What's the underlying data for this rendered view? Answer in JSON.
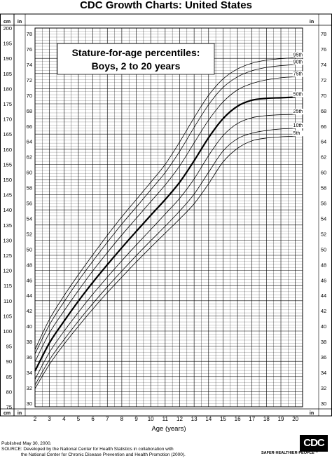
{
  "page": {
    "title": "CDC Growth Charts: United States",
    "published": "Published May 30, 2000.",
    "source_line1": "SOURCE: Developed by the National Center for Health Statistics in collaboration with",
    "source_line2": "the National Center for Chronic Disease Prevention and Health Promotion (2000).",
    "logo_text": "CDC",
    "tagline": "SAFER·HEALTHIER·PEOPLE™"
  },
  "chart_data": {
    "type": "line",
    "title": "Stature-for-age percentiles:",
    "subtitle": "Boys, 2 to 20 years",
    "xlabel": "Age (years)",
    "x_ticks": [
      2,
      3,
      4,
      5,
      6,
      7,
      8,
      9,
      10,
      11,
      12,
      13,
      14,
      15,
      16,
      17,
      18,
      19,
      20
    ],
    "xlim": [
      2,
      20.5
    ],
    "ylim_cm": [
      75,
      200
    ],
    "ylim_in": [
      29.5,
      78.74
    ],
    "cm_unit_label": "cm",
    "in_unit_label": "in",
    "cm_ticks": [
      75,
      80,
      85,
      90,
      95,
      100,
      105,
      110,
      115,
      120,
      125,
      130,
      135,
      140,
      145,
      150,
      155,
      160,
      165,
      170,
      175,
      180,
      185,
      190,
      195,
      200
    ],
    "in_ticks": [
      30,
      32,
      34,
      36,
      38,
      40,
      42,
      44,
      46,
      48,
      50,
      52,
      54,
      56,
      58,
      60,
      62,
      64,
      66,
      68,
      70,
      72,
      74,
      76,
      78
    ],
    "grid": true,
    "x": [
      2,
      3,
      4,
      5,
      6,
      7,
      8,
      9,
      10,
      11,
      12,
      13,
      14,
      15,
      16,
      17,
      18,
      19,
      20
    ],
    "series": [
      {
        "name": "95th",
        "values": [
          93.9,
          103.9,
          111.6,
          118.6,
          125.2,
          131.6,
          137.7,
          143.4,
          149.1,
          155.0,
          162.4,
          170.4,
          177.8,
          183.2,
          186.5,
          188.4,
          189.4,
          189.9,
          190.2
        ]
      },
      {
        "name": "90th",
        "values": [
          92.5,
          102.1,
          109.6,
          116.6,
          123.1,
          129.3,
          135.3,
          140.9,
          146.6,
          152.3,
          159.3,
          167.2,
          174.7,
          180.4,
          183.9,
          185.9,
          187.0,
          187.6,
          187.9
        ]
      },
      {
        "name": "75th",
        "values": [
          89.9,
          99.4,
          106.6,
          113.4,
          119.9,
          125.9,
          131.7,
          137.2,
          142.7,
          148.2,
          154.5,
          162.1,
          169.6,
          175.6,
          179.6,
          181.7,
          182.9,
          183.6,
          183.9
        ]
      },
      {
        "name": "50th",
        "values": [
          86.8,
          96.1,
          103.2,
          109.9,
          116.1,
          121.9,
          127.5,
          132.9,
          138.2,
          143.4,
          149.1,
          156.2,
          163.8,
          170.1,
          174.2,
          176.2,
          176.8,
          177.0,
          177.2
        ]
      },
      {
        "name": "25th",
        "values": [
          84.1,
          93.0,
          99.9,
          106.2,
          112.2,
          117.8,
          123.2,
          128.4,
          133.5,
          138.6,
          143.8,
          150.2,
          157.9,
          164.5,
          168.5,
          170.4,
          171.1,
          171.4,
          171.5
        ]
      },
      {
        "name": "10th",
        "values": [
          82.2,
          90.5,
          97.1,
          103.3,
          109.1,
          114.6,
          119.8,
          124.9,
          129.8,
          134.6,
          139.6,
          145.2,
          152.4,
          159.4,
          163.5,
          165.3,
          166.2,
          166.7,
          166.9
        ]
      },
      {
        "name": "5th",
        "values": [
          81.0,
          89.0,
          95.6,
          101.6,
          107.3,
          112.7,
          117.8,
          122.8,
          127.6,
          132.3,
          137.0,
          142.0,
          148.6,
          155.8,
          160.3,
          162.8,
          163.7,
          164.1,
          164.3
        ]
      }
    ]
  }
}
